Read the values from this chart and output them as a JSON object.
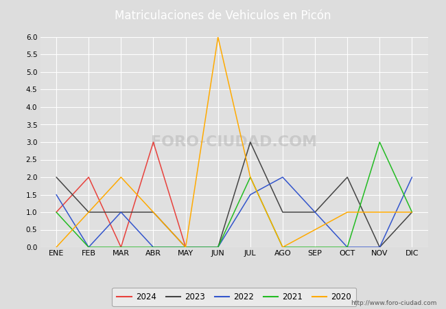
{
  "title": "Matriculaciones de Vehiculos en Picón",
  "months": [
    "ENE",
    "FEB",
    "MAR",
    "ABR",
    "MAY",
    "JUN",
    "JUL",
    "AGO",
    "SEP",
    "OCT",
    "NOV",
    "DIC"
  ],
  "series": {
    "2024": {
      "color": "#e8413c",
      "data": [
        1,
        2,
        0,
        3,
        0,
        null,
        null,
        null,
        null,
        null,
        null,
        null
      ]
    },
    "2023": {
      "color": "#444444",
      "data": [
        2,
        1,
        1,
        1,
        0,
        0,
        3,
        1,
        1,
        2,
        0,
        1
      ]
    },
    "2022": {
      "color": "#3355cc",
      "data": [
        1.5,
        0,
        1,
        0,
        0,
        0,
        1.5,
        2,
        1,
        0,
        0,
        2
      ]
    },
    "2021": {
      "color": "#22bb22",
      "data": [
        1,
        0,
        0,
        0,
        0,
        0,
        2,
        0,
        0,
        0,
        3,
        1
      ]
    },
    "2020": {
      "color": "#ffaa00",
      "data": [
        0,
        1,
        2,
        1,
        0,
        6,
        2,
        0,
        0.5,
        1,
        1,
        1
      ]
    }
  },
  "ylim": [
    0,
    6.0
  ],
  "yticks": [
    0.0,
    0.5,
    1.0,
    1.5,
    2.0,
    2.5,
    3.0,
    3.5,
    4.0,
    4.5,
    5.0,
    5.5,
    6.0
  ],
  "background_color": "#dddddd",
  "plot_bg_color": "#e0e0e0",
  "title_bg_color": "#4472c4",
  "title_text_color": "#ffffff",
  "grid_color": "#ffffff",
  "watermark_plot": "FORO-CIUDAD.COM",
  "watermark_url": "http://www.foro-ciudad.com",
  "legend_order": [
    "2024",
    "2023",
    "2022",
    "2021",
    "2020"
  ]
}
